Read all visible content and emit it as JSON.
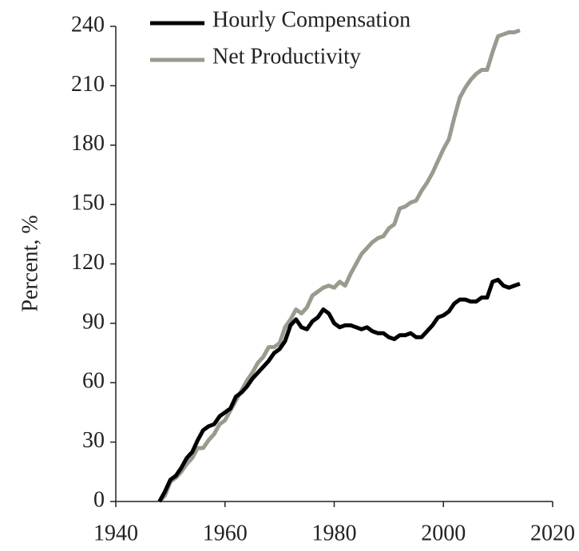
{
  "chart_data": {
    "type": "line",
    "y_label": "Percent, %",
    "x": [
      1948,
      1949,
      1950,
      1951,
      1952,
      1953,
      1954,
      1955,
      1956,
      1957,
      1958,
      1959,
      1960,
      1961,
      1962,
      1963,
      1964,
      1965,
      1966,
      1967,
      1968,
      1969,
      1970,
      1971,
      1972,
      1973,
      1974,
      1975,
      1976,
      1977,
      1978,
      1979,
      1980,
      1981,
      1982,
      1983,
      1984,
      1985,
      1986,
      1987,
      1988,
      1989,
      1990,
      1991,
      1992,
      1993,
      1994,
      1995,
      1996,
      1997,
      1998,
      1999,
      2000,
      2001,
      2002,
      2003,
      2004,
      2005,
      2006,
      2007,
      2008,
      2009,
      2010,
      2011,
      2012,
      2013,
      2014
    ],
    "series": [
      {
        "name": "Hourly Compensation",
        "color": "#000000",
        "values": [
          0,
          5,
          11,
          13,
          17,
          22,
          25,
          31,
          36,
          38,
          39,
          43,
          45,
          47,
          53,
          55,
          58,
          62,
          65,
          68,
          71,
          75,
          77,
          81,
          89,
          92,
          88,
          87,
          91,
          93,
          97,
          95,
          90,
          88,
          89,
          89,
          88,
          87,
          88,
          86,
          85,
          85,
          83,
          82,
          84,
          84,
          85,
          83,
          83,
          86,
          89,
          93,
          94,
          96,
          100,
          102,
          102,
          101,
          101,
          103,
          103,
          111,
          112,
          109,
          108,
          109,
          110
        ]
      },
      {
        "name": "Net Productivity",
        "color": "#9a9a8f",
        "values": [
          0,
          3,
          10,
          12,
          15,
          19,
          22,
          27,
          27,
          31,
          34,
          39,
          41,
          46,
          51,
          56,
          61,
          65,
          70,
          73,
          78,
          78,
          80,
          88,
          92,
          97,
          95,
          98,
          104,
          106,
          108,
          109,
          108,
          111,
          109,
          115,
          120,
          125,
          128,
          131,
          133,
          134,
          138,
          140,
          148,
          149,
          151,
          152,
          157,
          161,
          166,
          172,
          178,
          183,
          194,
          204,
          209,
          213,
          216,
          218,
          218,
          227,
          235,
          236,
          237,
          237,
          238
        ]
      }
    ],
    "xlim": [
      1940,
      2020
    ],
    "xticks": [
      1940,
      1960,
      1980,
      2000,
      2020
    ],
    "ylim": [
      0,
      240
    ],
    "yticks": [
      0,
      30,
      60,
      90,
      120,
      150,
      180,
      210,
      240
    ],
    "grid": false
  }
}
